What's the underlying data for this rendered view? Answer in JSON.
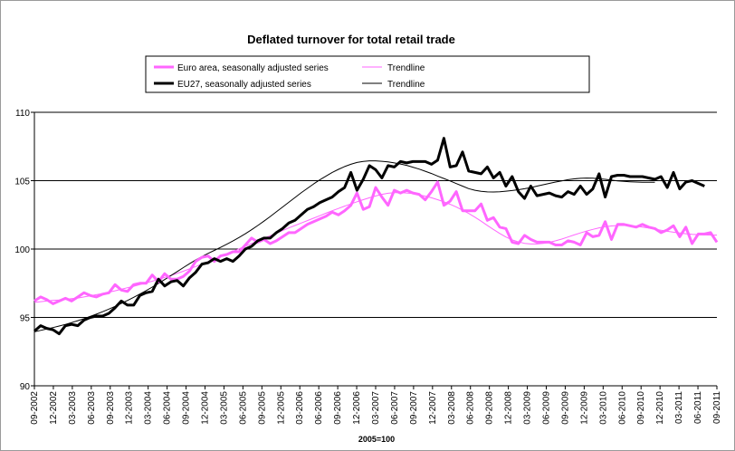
{
  "chart_data": {
    "type": "line",
    "title": "Deflated turnover for total retail trade",
    "xlabel": "2005=100",
    "ylabel": "",
    "ylim": [
      90,
      110
    ],
    "yticks": [
      90,
      95,
      100,
      105,
      110
    ],
    "gridlines_y": [
      95,
      100,
      105,
      110
    ],
    "x_tick_labels": [
      "09-2002",
      "12-2002",
      "03-2003",
      "06-2003",
      "09-2003",
      "12-2003",
      "03-2004",
      "06-2004",
      "09-2004",
      "12-2004",
      "03-2005",
      "06-2005",
      "09-2005",
      "12-2005",
      "03-2006",
      "06-2006",
      "09-2006",
      "12-2006",
      "03-2007",
      "06-2007",
      "09-2007",
      "12-2007",
      "03-2008",
      "06-2008",
      "09-2008",
      "12-2008",
      "03-2009",
      "06-2009",
      "09-2009",
      "12-2009",
      "03-2010",
      "06-2010",
      "09-2010",
      "12-2010",
      "03-2011",
      "06-2011",
      "09-2011"
    ],
    "legend": {
      "placement": "top",
      "entries": [
        {
          "label": "Euro area, seasonally adjusted series",
          "color": "#ff66ff",
          "style": "thick"
        },
        {
          "label": "Trendline",
          "color": "#ff66ff",
          "style": "thin"
        },
        {
          "label": "EU27, seasonally adjusted series",
          "color": "#000000",
          "style": "thick"
        },
        {
          "label": "Trendline",
          "color": "#000000",
          "style": "thin"
        }
      ]
    },
    "series": [
      {
        "name": "Euro area, seasonally adjusted series",
        "color": "#ff66ff",
        "width": 3,
        "values": [
          96.2,
          96.5,
          96.3,
          96.0,
          96.2,
          96.4,
          96.2,
          96.5,
          96.8,
          96.6,
          96.5,
          96.7,
          96.8,
          97.4,
          97.0,
          96.9,
          97.4,
          97.5,
          97.5,
          98.1,
          97.6,
          98.2,
          97.8,
          97.8,
          98.0,
          98.4,
          99.1,
          99.4,
          99.5,
          99.1,
          99.5,
          99.6,
          99.8,
          99.8,
          100.3,
          100.8,
          100.5,
          100.7,
          100.4,
          100.6,
          100.9,
          101.2,
          101.2,
          101.5,
          101.8,
          102.0,
          102.2,
          102.4,
          102.7,
          102.5,
          102.8,
          103.2,
          104.1,
          102.9,
          103.1,
          104.5,
          103.8,
          103.2,
          104.3,
          104.1,
          104.3,
          104.1,
          104.0,
          103.6,
          104.2,
          104.9,
          103.2,
          103.5,
          104.2,
          102.8,
          102.8,
          102.8,
          103.3,
          102.1,
          102.3,
          101.6,
          101.5,
          100.5,
          100.4,
          101.0,
          100.7,
          100.5,
          100.5,
          100.5,
          100.3,
          100.3,
          100.6,
          100.5,
          100.3,
          101.2,
          100.9,
          101.0,
          102.0,
          100.7,
          101.8,
          101.8,
          101.7,
          101.6,
          101.8,
          101.6,
          101.5,
          101.2,
          101.4,
          101.7,
          100.9,
          101.6,
          100.4,
          101.1,
          101.1,
          101.2,
          100.5
        ]
      },
      {
        "name": "Trendline",
        "color": "#ff66ff",
        "width": 1,
        "values": [
          96.1,
          96.15,
          96.2,
          96.25,
          96.28,
          96.32,
          96.37,
          96.42,
          96.5,
          96.58,
          96.66,
          96.75,
          96.85,
          96.95,
          97.06,
          97.17,
          97.28,
          97.4,
          97.52,
          97.65,
          97.78,
          97.92,
          98.07,
          98.22,
          98.38,
          98.55,
          98.72,
          98.9,
          99.08,
          99.26,
          99.45,
          99.64,
          99.83,
          100.02,
          100.21,
          100.4,
          100.59,
          100.78,
          100.97,
          101.16,
          101.35,
          101.54,
          101.72,
          101.9,
          102.08,
          102.26,
          102.44,
          102.62,
          102.8,
          102.97,
          103.14,
          103.3,
          103.46,
          103.61,
          103.75,
          103.88,
          104.0,
          104.08,
          104.12,
          104.13,
          104.1,
          104.05,
          103.97,
          103.87,
          103.75,
          103.61,
          103.45,
          103.27,
          103.07,
          102.85,
          102.6,
          102.33,
          102.04,
          101.73,
          101.43,
          101.14,
          100.88,
          100.67,
          100.52,
          100.42,
          100.37,
          100.37,
          100.41,
          100.49,
          100.6,
          100.73,
          100.88,
          101.03,
          101.18,
          101.32,
          101.44,
          101.55,
          101.63,
          101.69,
          101.72,
          101.73,
          101.71,
          101.67,
          101.61,
          101.54,
          101.46,
          101.38,
          101.3,
          101.23,
          101.17,
          101.12,
          101.08,
          101.05,
          101.03,
          101.02,
          101.02
        ]
      },
      {
        "name": "EU27, seasonally adjusted series",
        "color": "#000000",
        "width": 3,
        "values": [
          94.0,
          94.4,
          94.2,
          94.1,
          93.8,
          94.4,
          94.5,
          94.4,
          94.8,
          95.0,
          95.1,
          95.1,
          95.3,
          95.7,
          96.2,
          95.9,
          95.9,
          96.6,
          96.8,
          96.9,
          97.8,
          97.3,
          97.6,
          97.7,
          97.3,
          97.9,
          98.3,
          98.9,
          99.0,
          99.3,
          99.1,
          99.3,
          99.1,
          99.5,
          100.0,
          100.2,
          100.6,
          100.8,
          100.8,
          101.2,
          101.5,
          101.9,
          102.1,
          102.5,
          102.9,
          103.1,
          103.4,
          103.6,
          103.8,
          104.2,
          104.5,
          105.6,
          104.3,
          105.1,
          106.1,
          105.8,
          105.2,
          106.1,
          106.0,
          106.4,
          106.3,
          106.4,
          106.4,
          106.4,
          106.2,
          106.5,
          108.1,
          106.0,
          106.1,
          107.1,
          105.7,
          105.6,
          105.5,
          106.0,
          105.2,
          105.6,
          104.6,
          105.3,
          104.2,
          103.7,
          104.6,
          103.9,
          104.0,
          104.1,
          103.9,
          103.8,
          104.2,
          104.0,
          104.6,
          104.0,
          104.4,
          105.5,
          103.8,
          105.3,
          105.4,
          105.4,
          105.3,
          105.3,
          105.3,
          105.2,
          105.1,
          105.3,
          104.5,
          105.6,
          104.4,
          104.9,
          105.0,
          104.8,
          104.6
        ]
      },
      {
        "name": "Trendline",
        "color": "#000000",
        "width": 1,
        "values": [
          93.95,
          94.05,
          94.15,
          94.26,
          94.37,
          94.49,
          94.62,
          94.76,
          94.91,
          95.07,
          95.24,
          95.42,
          95.61,
          95.81,
          96.02,
          96.24,
          96.47,
          96.71,
          96.96,
          97.22,
          97.49,
          97.77,
          98.06,
          98.35,
          98.64,
          98.93,
          99.2,
          99.45,
          99.68,
          99.9,
          100.12,
          100.35,
          100.59,
          100.85,
          101.12,
          101.41,
          101.72,
          102.04,
          102.38,
          102.72,
          103.07,
          103.42,
          103.77,
          104.11,
          104.44,
          104.76,
          105.06,
          105.34,
          105.6,
          105.83,
          106.03,
          106.2,
          106.33,
          106.41,
          106.45,
          106.45,
          106.42,
          106.37,
          106.3,
          106.22,
          106.12,
          105.99,
          105.85,
          105.69,
          105.52,
          105.34,
          105.16,
          104.98,
          104.79,
          104.6,
          104.42,
          104.3,
          104.22,
          104.18,
          104.17,
          104.19,
          104.23,
          104.28,
          104.34,
          104.41,
          104.5,
          104.6,
          104.7,
          104.8,
          104.9,
          104.99,
          105.07,
          105.13,
          105.17,
          105.19,
          105.18,
          105.14,
          105.1,
          105.04,
          104.99,
          104.95,
          104.92,
          104.9,
          104.89,
          104.88,
          104.88
        ]
      }
    ]
  }
}
